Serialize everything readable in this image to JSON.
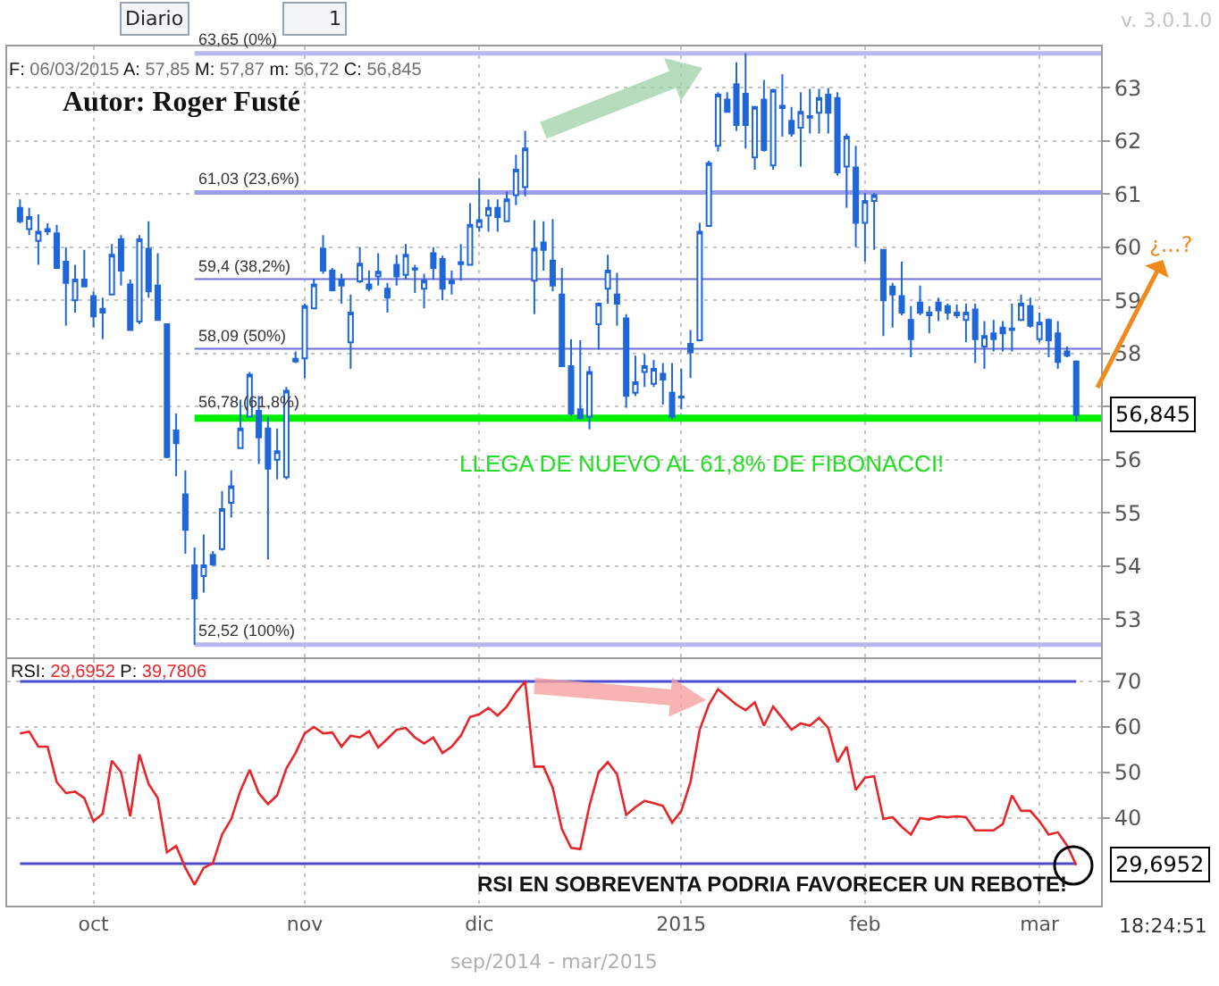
{
  "chart_data": [
    {
      "type": "candlestick",
      "title": "Autor: Roger Fusté",
      "color": "#1f66d9",
      "categories": [
        null,
        null,
        null,
        null,
        null,
        null,
        null,
        null,
        null,
        null,
        null,
        null,
        null,
        null,
        null,
        null,
        null,
        null,
        null,
        null,
        null,
        null,
        null,
        null,
        null,
        null,
        null,
        null,
        null,
        null,
        null,
        null,
        null,
        null,
        null,
        null,
        null,
        null,
        null,
        null,
        null,
        null,
        null,
        null,
        null,
        null,
        null,
        null,
        null,
        null,
        null,
        null,
        null,
        null,
        null,
        null,
        null,
        null,
        null,
        null,
        null,
        null,
        null,
        null,
        null,
        null,
        null,
        null,
        null,
        null,
        null,
        null,
        null,
        null,
        null,
        null,
        null,
        null,
        null,
        null,
        null,
        null,
        null,
        null,
        null,
        null,
        null,
        null,
        null,
        null,
        null,
        null,
        null,
        null,
        null,
        null,
        null,
        null,
        null,
        null,
        null,
        null,
        null,
        null,
        null,
        null,
        null,
        null,
        null,
        null,
        null,
        null,
        null,
        null,
        null,
        null
      ],
      "ohlc": [
        [
          60.74,
          60.9,
          60.45,
          60.49
        ],
        [
          60.34,
          60.74,
          60.23,
          60.57
        ],
        [
          60.12,
          60.62,
          59.67,
          60.29
        ],
        [
          60.3,
          60.45,
          60.23,
          60.34
        ],
        [
          60.26,
          60.42,
          59.61,
          59.61
        ],
        [
          59.73,
          60.0,
          58.52,
          59.33
        ],
        [
          59.0,
          59.67,
          58.77,
          59.39
        ],
        [
          59.39,
          59.95,
          59.25,
          59.26
        ],
        [
          59.08,
          59.17,
          58.49,
          58.7
        ],
        [
          58.84,
          59.05,
          58.27,
          58.77
        ],
        [
          59.11,
          60.06,
          59.11,
          59.86
        ],
        [
          60.15,
          60.23,
          59.28,
          59.56
        ],
        [
          59.3,
          59.39,
          58.44,
          58.44
        ],
        [
          58.6,
          60.23,
          58.55,
          60.15
        ],
        [
          59.97,
          60.49,
          59.05,
          59.17
        ],
        [
          59.28,
          59.89,
          58.63,
          58.63
        ],
        [
          58.55,
          58.55,
          56.03,
          56.05
        ],
        [
          56.55,
          56.87,
          55.69,
          56.31
        ],
        [
          55.35,
          55.8,
          54.23,
          54.68
        ],
        [
          54.01,
          54.35,
          52.52,
          53.39
        ],
        [
          53.81,
          54.59,
          53.5,
          54.01
        ],
        [
          54.21,
          54.28,
          54.0,
          54.03
        ],
        [
          54.32,
          55.41,
          54.29,
          55.07
        ],
        [
          55.19,
          55.8,
          54.91,
          55.5
        ],
        [
          56.22,
          57.13,
          56.2,
          56.59
        ],
        [
          56.81,
          57.65,
          56.81,
          57.6
        ],
        [
          56.92,
          57.2,
          55.92,
          56.42
        ],
        [
          56.59,
          56.81,
          54.12,
          55.83
        ],
        [
          56.0,
          56.59,
          55.63,
          56.16
        ],
        [
          55.67,
          57.37,
          55.63,
          57.3
        ],
        [
          57.9,
          58.04,
          57.82,
          57.85
        ],
        [
          57.91,
          58.94,
          57.54,
          58.89
        ],
        [
          58.85,
          59.41,
          58.83,
          59.3
        ],
        [
          59.97,
          60.23,
          59.5,
          59.56
        ],
        [
          59.56,
          59.61,
          59.17,
          59.19
        ],
        [
          59.39,
          59.5,
          58.94,
          59.28
        ],
        [
          58.21,
          59.11,
          57.71,
          58.77
        ],
        [
          59.36,
          60.0,
          59.33,
          59.69
        ],
        [
          59.3,
          59.56,
          59.17,
          59.22
        ],
        [
          59.45,
          59.89,
          59.28,
          59.54
        ],
        [
          59.22,
          59.33,
          58.77,
          59.05
        ],
        [
          59.67,
          59.86,
          59.28,
          59.45
        ],
        [
          59.48,
          60.06,
          59.39,
          59.86
        ],
        [
          59.6,
          59.67,
          59.14,
          59.58
        ],
        [
          59.22,
          59.5,
          58.85,
          59.37
        ],
        [
          59.89,
          60.0,
          59.39,
          59.61
        ],
        [
          59.78,
          59.84,
          59.0,
          59.22
        ],
        [
          59.37,
          59.56,
          59.11,
          59.32
        ],
        [
          59.68,
          60.06,
          59.37,
          59.72
        ],
        [
          59.67,
          60.83,
          59.67,
          60.42
        ],
        [
          60.38,
          61.3,
          60.29,
          60.51
        ],
        [
          60.6,
          60.9,
          60.29,
          60.74
        ],
        [
          60.74,
          60.9,
          60.29,
          60.57
        ],
        [
          60.49,
          61.05,
          60.49,
          60.9
        ],
        [
          60.98,
          61.74,
          60.79,
          61.46
        ],
        [
          61.13,
          62.19,
          60.96,
          61.86
        ],
        [
          59.37,
          60.51,
          58.74,
          59.97
        ],
        [
          60.09,
          60.49,
          59.56,
          59.95
        ],
        [
          59.75,
          60.53,
          59.17,
          59.28
        ],
        [
          59.11,
          59.61,
          57.76,
          57.76
        ],
        [
          57.76,
          58.27,
          56.83,
          56.87
        ],
        [
          56.95,
          58.25,
          56.76,
          56.78
        ],
        [
          56.81,
          57.76,
          56.57,
          57.65
        ],
        [
          58.55,
          58.96,
          58.07,
          58.94
        ],
        [
          59.22,
          59.86,
          58.94,
          59.56
        ],
        [
          59.11,
          59.52,
          58.52,
          58.94
        ],
        [
          58.66,
          58.74,
          56.98,
          57.2
        ],
        [
          57.26,
          57.96,
          57.2,
          57.46
        ],
        [
          57.65,
          57.99,
          57.37,
          57.76
        ],
        [
          57.43,
          57.88,
          57.37,
          57.71
        ],
        [
          57.62,
          57.82,
          57.04,
          57.51
        ],
        [
          57.26,
          57.82,
          56.76,
          56.81
        ],
        [
          57.19,
          57.71,
          56.95,
          57.17
        ],
        [
          58.18,
          58.44,
          57.54,
          58.02
        ],
        [
          58.25,
          60.46,
          58.25,
          60.29
        ],
        [
          60.4,
          61.63,
          60.4,
          61.58
        ],
        [
          61.91,
          62.92,
          61.8,
          62.87
        ],
        [
          62.78,
          62.92,
          62.53,
          62.55
        ],
        [
          63.07,
          63.48,
          62.19,
          62.3
        ],
        [
          62.89,
          63.65,
          61.86,
          62.3
        ],
        [
          61.69,
          62.64,
          61.46,
          62.64
        ],
        [
          62.78,
          63.15,
          61.8,
          61.83
        ],
        [
          61.54,
          62.98,
          61.46,
          62.96
        ],
        [
          62.66,
          63.26,
          62.08,
          62.62
        ],
        [
          62.38,
          62.64,
          62.08,
          62.14
        ],
        [
          62.25,
          62.92,
          61.52,
          62.55
        ],
        [
          62.47,
          62.98,
          62.14,
          62.44
        ],
        [
          62.53,
          62.98,
          62.14,
          62.81
        ],
        [
          62.87,
          63.0,
          62.14,
          62.53
        ],
        [
          62.81,
          62.92,
          61.35,
          61.41
        ],
        [
          61.52,
          62.14,
          60.74,
          62.08
        ],
        [
          61.5,
          61.91,
          60.0,
          60.46
        ],
        [
          60.46,
          61.02,
          59.73,
          60.87
        ],
        [
          60.87,
          61.02,
          59.95,
          60.98
        ],
        [
          59.95,
          59.95,
          58.33,
          59.0
        ],
        [
          59.26,
          59.33,
          58.49,
          59.11
        ],
        [
          59.08,
          59.73,
          58.72,
          58.77
        ],
        [
          58.63,
          58.89,
          57.93,
          58.27
        ],
        [
          58.96,
          59.28,
          58.72,
          58.77
        ],
        [
          58.72,
          58.89,
          58.38,
          58.77
        ],
        [
          58.96,
          59.05,
          58.61,
          58.81
        ],
        [
          58.89,
          58.94,
          58.63,
          58.77
        ],
        [
          58.77,
          58.92,
          58.66,
          58.72
        ],
        [
          58.63,
          58.94,
          58.21,
          58.77
        ],
        [
          58.83,
          58.94,
          57.82,
          58.27
        ],
        [
          58.13,
          58.61,
          57.71,
          58.33
        ],
        [
          58.38,
          58.63,
          58.04,
          58.27
        ],
        [
          58.49,
          58.61,
          58.04,
          58.38
        ],
        [
          58.47,
          58.94,
          58.04,
          58.44
        ],
        [
          58.63,
          59.11,
          58.61,
          58.94
        ],
        [
          58.89,
          59.05,
          58.49,
          58.52
        ],
        [
          58.27,
          58.77,
          58.21,
          58.58
        ],
        [
          58.63,
          58.66,
          57.93,
          58.25
        ],
        [
          58.38,
          58.61,
          57.71,
          57.84
        ],
        [
          58.04,
          58.13,
          57.93,
          57.96
        ],
        [
          57.85,
          57.87,
          56.72,
          56.845
        ]
      ],
      "ylim": [
        52.28,
        63.78
      ],
      "yticks": [
        53,
        54,
        55,
        56,
        {
          "value": 57,
          "label": null
        },
        58,
        59,
        60,
        61,
        62,
        63
      ],
      "grid": true,
      "ref_lines": [
        {
          "axis": "y",
          "value": 63.65,
          "label": "63,65 (0%)",
          "color": "#b8b8f0"
        },
        {
          "axis": "y",
          "value": 61.03,
          "label": "61,03 (23,6%)",
          "color": "#9c9cf0"
        },
        {
          "axis": "y",
          "value": 59.4,
          "label": "59,4 (38,2%)",
          "color": "#6f6fd8"
        },
        {
          "axis": "y",
          "value": 58.09,
          "label": "58,09 (50%)",
          "color": "#6f6fd8"
        },
        {
          "axis": "y",
          "value": 56.78,
          "label": "56,78 (61,8%)",
          "color": "#00ee00"
        },
        {
          "axis": "y",
          "value": 52.52,
          "label": "52,52 (100%)",
          "color": "#b8b8f0"
        }
      ],
      "annotations": [
        "F: 06/03/2015 A: 57,85 M: 57,87 m: 56,72 C: 56,845",
        "LLEGA DE NUEVO AL 61,8% DE FIBONACCI!",
        "¿...?",
        "56,845",
        "Diario",
        "1",
        "v. 3.0.1.0"
      ]
    },
    {
      "type": "line",
      "categories": [
        null,
        null,
        null,
        null,
        null,
        null,
        null,
        null,
        "oct",
        null,
        null,
        null,
        null,
        null,
        null,
        null,
        null,
        null,
        null,
        null,
        null,
        null,
        null,
        null,
        null,
        null,
        null,
        null,
        null,
        null,
        null,
        "nov",
        null,
        null,
        null,
        null,
        null,
        null,
        null,
        null,
        null,
        null,
        null,
        null,
        null,
        null,
        null,
        null,
        null,
        null,
        "dic",
        null,
        null,
        null,
        null,
        null,
        null,
        null,
        null,
        null,
        null,
        null,
        null,
        null,
        null,
        null,
        null,
        null,
        null,
        null,
        null,
        null,
        "2015",
        null,
        null,
        null,
        null,
        null,
        null,
        null,
        null,
        null,
        null,
        null,
        null,
        null,
        null,
        null,
        null,
        null,
        null,
        null,
        "feb",
        null,
        null,
        null,
        null,
        null,
        null,
        null,
        null,
        null,
        null,
        null,
        null,
        null,
        null,
        null,
        null,
        null,
        null,
        "mar",
        null,
        null,
        null,
        null
      ],
      "series": [
        {
          "color": "#e8262a",
          "values": [
            58.6,
            59,
            55.7,
            55.7,
            47.9,
            45.5,
            45.8,
            44.4,
            39.3,
            41,
            52.6,
            50.1,
            40.4,
            54,
            47.5,
            44.4,
            32.5,
            33.9,
            29.1,
            25.4,
            29.1,
            30.1,
            36.4,
            39.8,
            46,
            50.6,
            45.5,
            43.1,
            45,
            50.9,
            54.3,
            58.6,
            60,
            58.6,
            58.8,
            55.7,
            58.1,
            57.7,
            59.1,
            55.5,
            57.4,
            59.4,
            59.8,
            57.7,
            56.4,
            57.7,
            54.3,
            55.7,
            58.1,
            62.2,
            62.8,
            64.2,
            62.5,
            64.5,
            67.6,
            70,
            51.3,
            51.3,
            46.7,
            37.6,
            33.5,
            33.2,
            42.7,
            50.1,
            52.3,
            49.6,
            40.7,
            42.4,
            43.8,
            43.3,
            42.7,
            39,
            41.6,
            47.9,
            59.4,
            64.9,
            68.3,
            66.6,
            64.9,
            63.7,
            65.4,
            60.3,
            64.5,
            62,
            59.4,
            60.8,
            60.3,
            62,
            59.8,
            52.3,
            55.7,
            46.2,
            48.9,
            49.2,
            39.8,
            40.2,
            38.1,
            36.4,
            40,
            39.7,
            40.4,
            40.2,
            40.4,
            40.2,
            37.3,
            37.3,
            37.3,
            38.7,
            45,
            41.6,
            41.6,
            39.3,
            36.4,
            36.9,
            34,
            29.6952
          ]
        }
      ],
      "ylim": [
        20.8,
        74.9
      ],
      "yticks": [
        40,
        50,
        60,
        70
      ],
      "grid": true,
      "ref_lines": [
        {
          "axis": "y",
          "value": 70,
          "color": "#4b4bd0"
        },
        {
          "axis": "y",
          "value": 30,
          "color": "#4b4bd0"
        }
      ],
      "annotations": [
        "RSI: 29,6952 P: 39,7806",
        "RSI EN SOBREVENTA PODRIA FAVORECER UN REBOTE!",
        "29,6952",
        "sep/2014 - mar/2015",
        "18:24:51"
      ]
    }
  ]
}
